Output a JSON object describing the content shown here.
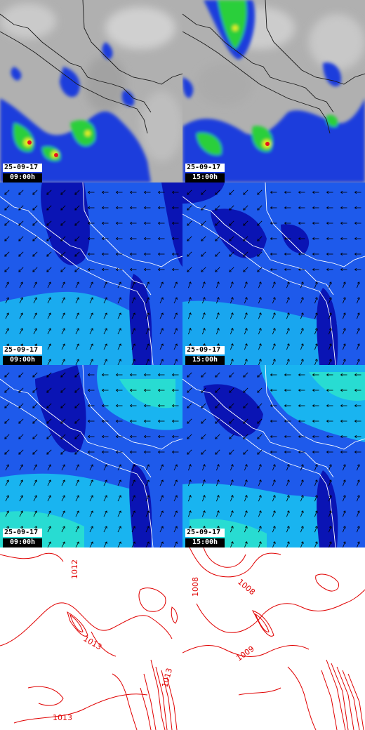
{
  "panels": {
    "precip_09": {
      "date": "25-09-17",
      "time": "09:00h"
    },
    "precip_15": {
      "date": "25-09-17",
      "time": "15:00h"
    },
    "wind1_09": {
      "date": "25-09-17",
      "time": "09:00h"
    },
    "wind1_15": {
      "date": "25-09-17",
      "time": "15:00h"
    },
    "wind2_09": {
      "date": "25-09-17",
      "time": "09:00h"
    },
    "wind2_15": {
      "date": "25-09-17",
      "time": "15:00h"
    },
    "pressure_09": {
      "labels": [
        "1012",
        "1013",
        "1013",
        "1013"
      ]
    },
    "pressure_15": {
      "labels": [
        "1008",
        "1008",
        "1009"
      ]
    }
  },
  "colors": {
    "precip_background": "#b4b4b4",
    "precip_blue": "#1e3cdc",
    "precip_green": "#2ccf3a",
    "precip_yellow": "#e8f020",
    "precip_red": "#e8141e",
    "wind_darkblue": "#0a14b4",
    "wind_blue": "#1e5aeb",
    "wind_cyan": "#19b4f0",
    "wind_teal": "#28dcd2",
    "coastline": "#ffffff",
    "isobar": "#e00000"
  }
}
